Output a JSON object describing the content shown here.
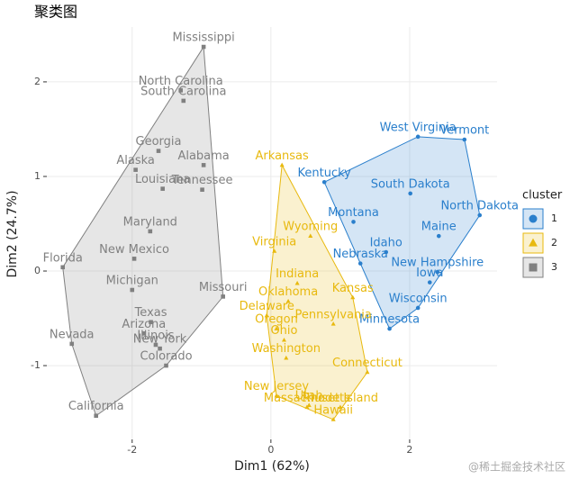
{
  "chart_data": {
    "type": "scatter",
    "title": "聚类图",
    "xlabel": "Dim1 (62%)",
    "ylabel": "Dim2 (24.7%)",
    "legend_title": "cluster",
    "legend": "right",
    "grid": true,
    "hull": true,
    "xlim": [
      -3.23,
      3.26
    ],
    "ylim": [
      -1.78,
      2.58
    ],
    "xticks": [
      -2,
      0,
      2
    ],
    "yticks": [
      -1,
      0,
      1,
      2
    ],
    "watermark": "@稀土掘金技术社区",
    "series": [
      {
        "name": "1",
        "color": "#2a7fcc",
        "shape": "circle",
        "labels": [
          "West Virginia",
          "Vermont",
          "Kentucky",
          "South Dakota",
          "Montana",
          "North Dakota",
          "Maine",
          "Idaho",
          "Nebraska",
          "New Hampshire",
          "Iowa",
          "Wisconsin",
          "Minnesota"
        ],
        "x": [
          2.12,
          2.79,
          0.77,
          2.01,
          1.19,
          3.01,
          2.42,
          1.66,
          1.29,
          2.4,
          2.29,
          2.12,
          1.71
        ],
        "y": [
          1.42,
          1.39,
          0.94,
          0.82,
          0.52,
          0.59,
          0.37,
          0.2,
          0.08,
          -0.01,
          -0.12,
          -0.39,
          -0.61
        ]
      },
      {
        "name": "2",
        "color": "#e8b90e",
        "shape": "triangle",
        "labels": [
          "Arkansas",
          "Wyoming",
          "Virginia",
          "Indiana",
          "Kansas",
          "Delaware",
          "Oklahoma",
          "Pennsylvania",
          "Oregon",
          "Ohio",
          "Washington",
          "Connecticut",
          "New Jersey",
          "Utah",
          "Massachusetts",
          "Rhode Island",
          "Hawaii"
        ],
        "x": [
          0.16,
          0.57,
          0.05,
          0.38,
          1.18,
          -0.06,
          0.25,
          0.9,
          0.08,
          0.19,
          0.22,
          1.39,
          0.08,
          0.55,
          0.52,
          1.0,
          0.9
        ],
        "y": [
          1.12,
          0.37,
          0.21,
          -0.13,
          -0.28,
          -0.47,
          -0.32,
          -0.56,
          -0.61,
          -0.73,
          -0.92,
          -1.07,
          -1.32,
          -1.42,
          -1.44,
          -1.44,
          -1.57
        ]
      },
      {
        "name": "3",
        "color": "#808080",
        "shape": "square",
        "labels": [
          "Mississippi",
          "North Carolina",
          "South Carolina",
          "Georgia",
          "Alaska",
          "Alabama",
          "Louisiana",
          "Tennessee",
          "Maryland",
          "New Mexico",
          "Florida",
          "Michigan",
          "Missouri",
          "Arizona",
          "Texas",
          "Illinois",
          "New York",
          "Nevada",
          "Colorado",
          "California"
        ],
        "x": [
          -0.97,
          -1.3,
          -1.26,
          -1.62,
          -1.95,
          -0.97,
          -1.56,
          -0.99,
          -1.74,
          -1.97,
          -3.0,
          -2.0,
          -0.69,
          -1.83,
          -1.73,
          -1.66,
          -1.6,
          -2.87,
          -1.51,
          -2.52
        ],
        "y": [
          2.37,
          1.91,
          1.8,
          1.27,
          1.07,
          1.12,
          0.87,
          0.86,
          0.42,
          0.13,
          0.04,
          -0.2,
          -0.27,
          -0.66,
          -0.54,
          -0.78,
          -0.82,
          -0.77,
          -1.0,
          -1.53
        ]
      }
    ]
  }
}
